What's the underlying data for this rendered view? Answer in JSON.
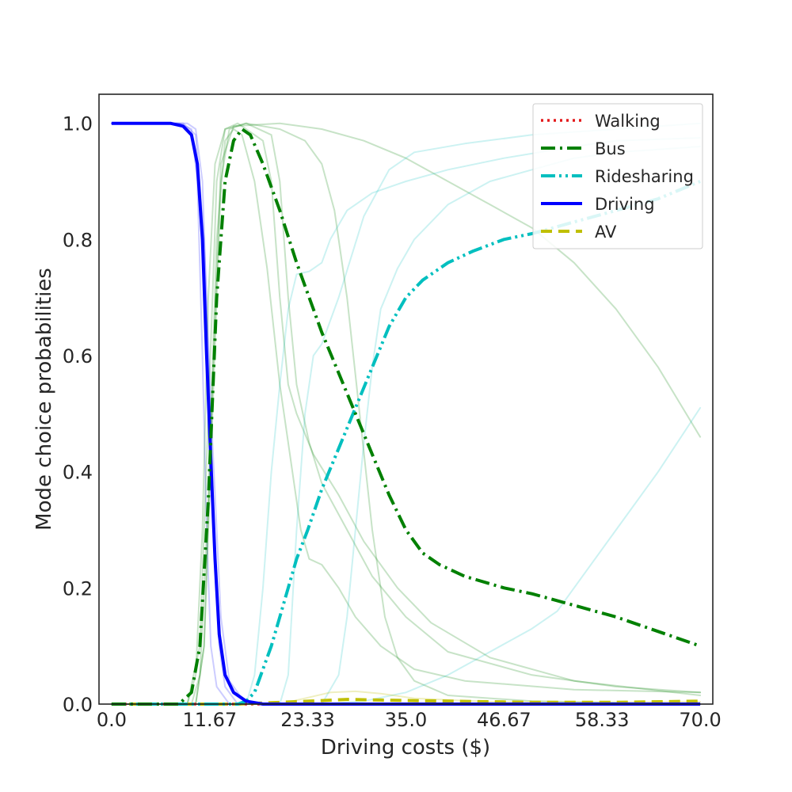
{
  "chart_data": {
    "type": "line",
    "xlabel": "Driving costs ($)",
    "ylabel": "Mode choice probabilities",
    "xlim": [
      -1.5,
      71.5
    ],
    "ylim": [
      0,
      1.05
    ],
    "x_ticks": [
      0.0,
      11.67,
      23.33,
      35.0,
      46.67,
      58.33,
      70.0
    ],
    "x_tick_labels": [
      "0.0",
      "11.67",
      "23.33",
      "35.0",
      "46.67",
      "58.33",
      "70.0"
    ],
    "y_ticks": [
      0.0,
      0.2,
      0.4,
      0.6,
      0.8,
      1.0
    ],
    "y_tick_labels": [
      "0.0",
      "0.2",
      "0.4",
      "0.6",
      "0.8",
      "1.0"
    ],
    "grid": false,
    "legend_position": "top-right",
    "colors": {
      "walking": "#e41a1c",
      "bus": "#008000",
      "ridesharing": "#00bfbf",
      "driving": "#0000ff",
      "av": "#bfbf00"
    },
    "series": [
      {
        "name": "Walking",
        "style": "dotted",
        "color": "#e41a1c",
        "points": [
          [
            0,
            0.0
          ],
          [
            70,
            0.0
          ]
        ]
      },
      {
        "name": "Bus",
        "style": "dashdot",
        "color": "#008000",
        "points": [
          [
            0,
            0.0
          ],
          [
            8,
            0.0
          ],
          [
            9.5,
            0.02
          ],
          [
            10.5,
            0.1
          ],
          [
            11.5,
            0.35
          ],
          [
            12.5,
            0.7
          ],
          [
            13.5,
            0.9
          ],
          [
            14.5,
            0.97
          ],
          [
            15.5,
            0.99
          ],
          [
            16.5,
            0.98
          ],
          [
            18,
            0.93
          ],
          [
            20,
            0.85
          ],
          [
            22,
            0.76
          ],
          [
            23.5,
            0.7
          ],
          [
            25,
            0.64
          ],
          [
            27,
            0.57
          ],
          [
            29,
            0.5
          ],
          [
            31,
            0.43
          ],
          [
            33,
            0.36
          ],
          [
            35,
            0.3
          ],
          [
            37,
            0.26
          ],
          [
            39,
            0.24
          ],
          [
            42,
            0.22
          ],
          [
            46.67,
            0.2
          ],
          [
            50,
            0.19
          ],
          [
            55,
            0.17
          ],
          [
            60,
            0.15
          ],
          [
            65,
            0.125
          ],
          [
            70,
            0.1
          ]
        ]
      },
      {
        "name": "Ridesharing",
        "style": "dashdotdot",
        "color": "#00bfbf",
        "points": [
          [
            0,
            0.0
          ],
          [
            15,
            0.0
          ],
          [
            16,
            0.005
          ],
          [
            17,
            0.02
          ],
          [
            18,
            0.06
          ],
          [
            19,
            0.1
          ],
          [
            20,
            0.15
          ],
          [
            21,
            0.2
          ],
          [
            22,
            0.25
          ],
          [
            23.33,
            0.3
          ],
          [
            25,
            0.37
          ],
          [
            27,
            0.44
          ],
          [
            29,
            0.51
          ],
          [
            31,
            0.58
          ],
          [
            33,
            0.65
          ],
          [
            35,
            0.7
          ],
          [
            37,
            0.73
          ],
          [
            40,
            0.76
          ],
          [
            43,
            0.78
          ],
          [
            46.67,
            0.8
          ],
          [
            50,
            0.81
          ],
          [
            55,
            0.83
          ],
          [
            60,
            0.85
          ],
          [
            65,
            0.87
          ],
          [
            70,
            0.9
          ]
        ]
      },
      {
        "name": "Driving",
        "style": "solid",
        "color": "#0000ff",
        "points": [
          [
            0,
            1.0
          ],
          [
            7,
            1.0
          ],
          [
            8.5,
            0.995
          ],
          [
            9.5,
            0.98
          ],
          [
            10.2,
            0.93
          ],
          [
            10.8,
            0.8
          ],
          [
            11.3,
            0.6
          ],
          [
            11.8,
            0.42
          ],
          [
            12.3,
            0.25
          ],
          [
            12.8,
            0.12
          ],
          [
            13.5,
            0.05
          ],
          [
            14.5,
            0.02
          ],
          [
            16,
            0.005
          ],
          [
            18,
            0.0
          ],
          [
            70,
            0.0
          ]
        ]
      },
      {
        "name": "AV",
        "style": "dashed",
        "color": "#bfbf00",
        "points": [
          [
            0,
            0.0
          ],
          [
            15,
            0.0
          ],
          [
            20,
            0.003
          ],
          [
            25,
            0.006
          ],
          [
            28,
            0.008
          ],
          [
            32,
            0.007
          ],
          [
            40,
            0.005
          ],
          [
            50,
            0.003
          ],
          [
            60,
            0.003
          ],
          [
            70,
            0.005
          ]
        ]
      }
    ],
    "background_series": [
      {
        "color": "#0000ff",
        "opacity": 0.2,
        "points": [
          [
            0,
            1.0
          ],
          [
            8,
            1.0
          ],
          [
            9.5,
            0.99
          ],
          [
            10.2,
            0.9
          ],
          [
            10.8,
            0.6
          ],
          [
            11.3,
            0.3
          ],
          [
            11.8,
            0.1
          ],
          [
            12.5,
            0.03
          ],
          [
            14,
            0.0
          ],
          [
            70,
            0.0
          ]
        ]
      },
      {
        "color": "#0000ff",
        "opacity": 0.2,
        "points": [
          [
            0,
            1.0
          ],
          [
            9,
            1.0
          ],
          [
            10,
            0.99
          ],
          [
            10.8,
            0.9
          ],
          [
            11.5,
            0.6
          ],
          [
            12.2,
            0.3
          ],
          [
            12.8,
            0.1
          ],
          [
            13.5,
            0.03
          ],
          [
            15,
            0.0
          ],
          [
            70,
            0.0
          ]
        ]
      },
      {
        "color": "#0000ff",
        "opacity": 0.2,
        "points": [
          [
            0,
            1.0
          ],
          [
            8.5,
            1.0
          ],
          [
            10,
            0.98
          ],
          [
            11,
            0.8
          ],
          [
            12,
            0.45
          ],
          [
            13,
            0.15
          ],
          [
            14,
            0.04
          ],
          [
            15.5,
            0.01
          ],
          [
            17,
            0.0
          ],
          [
            70,
            0.0
          ]
        ]
      },
      {
        "color": "#008000",
        "opacity": 0.22,
        "points": [
          [
            0,
            0.0
          ],
          [
            9,
            0.0
          ],
          [
            10,
            0.05
          ],
          [
            10.8,
            0.3
          ],
          [
            11.5,
            0.7
          ],
          [
            12.3,
            0.93
          ],
          [
            13.5,
            0.99
          ],
          [
            15,
            1.0
          ],
          [
            18,
            0.97
          ],
          [
            19,
            0.9
          ],
          [
            20,
            0.7
          ],
          [
            21,
            0.55
          ],
          [
            22,
            0.5
          ],
          [
            24,
            0.43
          ],
          [
            27,
            0.36
          ],
          [
            30,
            0.28
          ],
          [
            34,
            0.2
          ],
          [
            38,
            0.14
          ],
          [
            45,
            0.08
          ],
          [
            55,
            0.04
          ],
          [
            70,
            0.015
          ]
        ]
      },
      {
        "color": "#008000",
        "opacity": 0.22,
        "points": [
          [
            0,
            0.0
          ],
          [
            9.5,
            0.0
          ],
          [
            10.5,
            0.05
          ],
          [
            11.5,
            0.35
          ],
          [
            12.5,
            0.8
          ],
          [
            13.5,
            0.97
          ],
          [
            14.5,
            0.99
          ],
          [
            15.5,
            0.98
          ],
          [
            17,
            0.9
          ],
          [
            18.5,
            0.75
          ],
          [
            20,
            0.55
          ],
          [
            21.5,
            0.4
          ],
          [
            22.5,
            0.3
          ],
          [
            23.5,
            0.25
          ],
          [
            25,
            0.24
          ],
          [
            27,
            0.2
          ],
          [
            29,
            0.15
          ],
          [
            32,
            0.1
          ],
          [
            36,
            0.06
          ],
          [
            42,
            0.04
          ],
          [
            55,
            0.025
          ],
          [
            70,
            0.02
          ]
        ]
      },
      {
        "color": "#008000",
        "opacity": 0.22,
        "points": [
          [
            0,
            0.0
          ],
          [
            10,
            0.0
          ],
          [
            11,
            0.1
          ],
          [
            12,
            0.5
          ],
          [
            13,
            0.9
          ],
          [
            14,
            0.99
          ],
          [
            16,
            1.0
          ],
          [
            20,
            0.99
          ],
          [
            23,
            0.97
          ],
          [
            25,
            0.93
          ],
          [
            26.5,
            0.85
          ],
          [
            28,
            0.7
          ],
          [
            29.5,
            0.5
          ],
          [
            31,
            0.3
          ],
          [
            32.5,
            0.15
          ],
          [
            34,
            0.08
          ],
          [
            36,
            0.04
          ],
          [
            40,
            0.015
          ],
          [
            50,
            0.005
          ],
          [
            70,
            0.0
          ]
        ]
      },
      {
        "color": "#008000",
        "opacity": 0.22,
        "points": [
          [
            0,
            0.0
          ],
          [
            10,
            0.0
          ],
          [
            11,
            0.1
          ],
          [
            12,
            0.55
          ],
          [
            13,
            0.93
          ],
          [
            14.5,
            0.995
          ],
          [
            20,
            1.0
          ],
          [
            25,
            0.99
          ],
          [
            30,
            0.97
          ],
          [
            35,
            0.94
          ],
          [
            40,
            0.9
          ],
          [
            45,
            0.86
          ],
          [
            50,
            0.82
          ],
          [
            55,
            0.76
          ],
          [
            60,
            0.68
          ],
          [
            65,
            0.58
          ],
          [
            70,
            0.46
          ]
        ]
      },
      {
        "color": "#008000",
        "opacity": 0.22,
        "points": [
          [
            0,
            0.0
          ],
          [
            9,
            0.0
          ],
          [
            10.5,
            0.1
          ],
          [
            11.5,
            0.5
          ],
          [
            12.5,
            0.9
          ],
          [
            13.5,
            0.99
          ],
          [
            16,
            1.0
          ],
          [
            19,
            0.98
          ],
          [
            20,
            0.9
          ],
          [
            21,
            0.7
          ],
          [
            22,
            0.55
          ],
          [
            23.5,
            0.45
          ],
          [
            25,
            0.38
          ],
          [
            28,
            0.3
          ],
          [
            31,
            0.22
          ],
          [
            35,
            0.15
          ],
          [
            40,
            0.09
          ],
          [
            50,
            0.05
          ],
          [
            60,
            0.03
          ],
          [
            70,
            0.02
          ]
        ]
      },
      {
        "color": "#00bfbf",
        "opacity": 0.2,
        "points": [
          [
            0,
            0.0
          ],
          [
            16,
            0.0
          ],
          [
            17,
            0.05
          ],
          [
            18,
            0.2
          ],
          [
            19,
            0.4
          ],
          [
            20,
            0.55
          ],
          [
            21,
            0.68
          ],
          [
            22,
            0.74
          ],
          [
            23.5,
            0.745
          ],
          [
            25,
            0.76
          ],
          [
            26,
            0.8
          ],
          [
            28,
            0.85
          ],
          [
            31,
            0.88
          ],
          [
            35,
            0.9
          ],
          [
            40,
            0.92
          ],
          [
            46.67,
            0.94
          ],
          [
            55,
            0.96
          ],
          [
            60,
            0.97
          ],
          [
            70,
            0.975
          ]
        ]
      },
      {
        "color": "#00bfbf",
        "opacity": 0.2,
        "points": [
          [
            0,
            0.0
          ],
          [
            20,
            0.0
          ],
          [
            21,
            0.05
          ],
          [
            22,
            0.3
          ],
          [
            23,
            0.5
          ],
          [
            24,
            0.6
          ],
          [
            25,
            0.62
          ],
          [
            27,
            0.7
          ],
          [
            30,
            0.84
          ],
          [
            33,
            0.92
          ],
          [
            36,
            0.95
          ],
          [
            42,
            0.965
          ],
          [
            50,
            0.98
          ],
          [
            60,
            0.99
          ],
          [
            70,
            1.0
          ]
        ]
      },
      {
        "color": "#00bfbf",
        "opacity": 0.2,
        "points": [
          [
            0,
            0.0
          ],
          [
            25,
            0.0
          ],
          [
            27,
            0.05
          ],
          [
            28,
            0.15
          ],
          [
            29,
            0.3
          ],
          [
            30,
            0.45
          ],
          [
            31,
            0.58
          ],
          [
            32,
            0.68
          ],
          [
            34,
            0.75
          ],
          [
            36,
            0.8
          ],
          [
            40,
            0.86
          ],
          [
            45,
            0.9
          ],
          [
            50,
            0.92
          ],
          [
            55,
            0.94
          ],
          [
            60,
            0.95
          ],
          [
            65,
            0.955
          ],
          [
            70,
            0.96
          ]
        ]
      },
      {
        "color": "#00bfbf",
        "opacity": 0.2,
        "points": [
          [
            0,
            0.0
          ],
          [
            25,
            0.0
          ],
          [
            30,
            0.005
          ],
          [
            35,
            0.02
          ],
          [
            40,
            0.05
          ],
          [
            45,
            0.09
          ],
          [
            50,
            0.13
          ],
          [
            53,
            0.16
          ],
          [
            56,
            0.22
          ],
          [
            60,
            0.3
          ],
          [
            65,
            0.4
          ],
          [
            70,
            0.51
          ]
        ]
      },
      {
        "color": "#bfbf00",
        "opacity": 0.25,
        "points": [
          [
            0,
            0.0
          ],
          [
            20,
            0.0
          ],
          [
            23,
            0.01
          ],
          [
            26,
            0.02
          ],
          [
            29,
            0.022
          ],
          [
            32,
            0.018
          ],
          [
            36,
            0.01
          ],
          [
            45,
            0.004
          ],
          [
            60,
            0.003
          ],
          [
            70,
            0.004
          ]
        ]
      }
    ]
  }
}
